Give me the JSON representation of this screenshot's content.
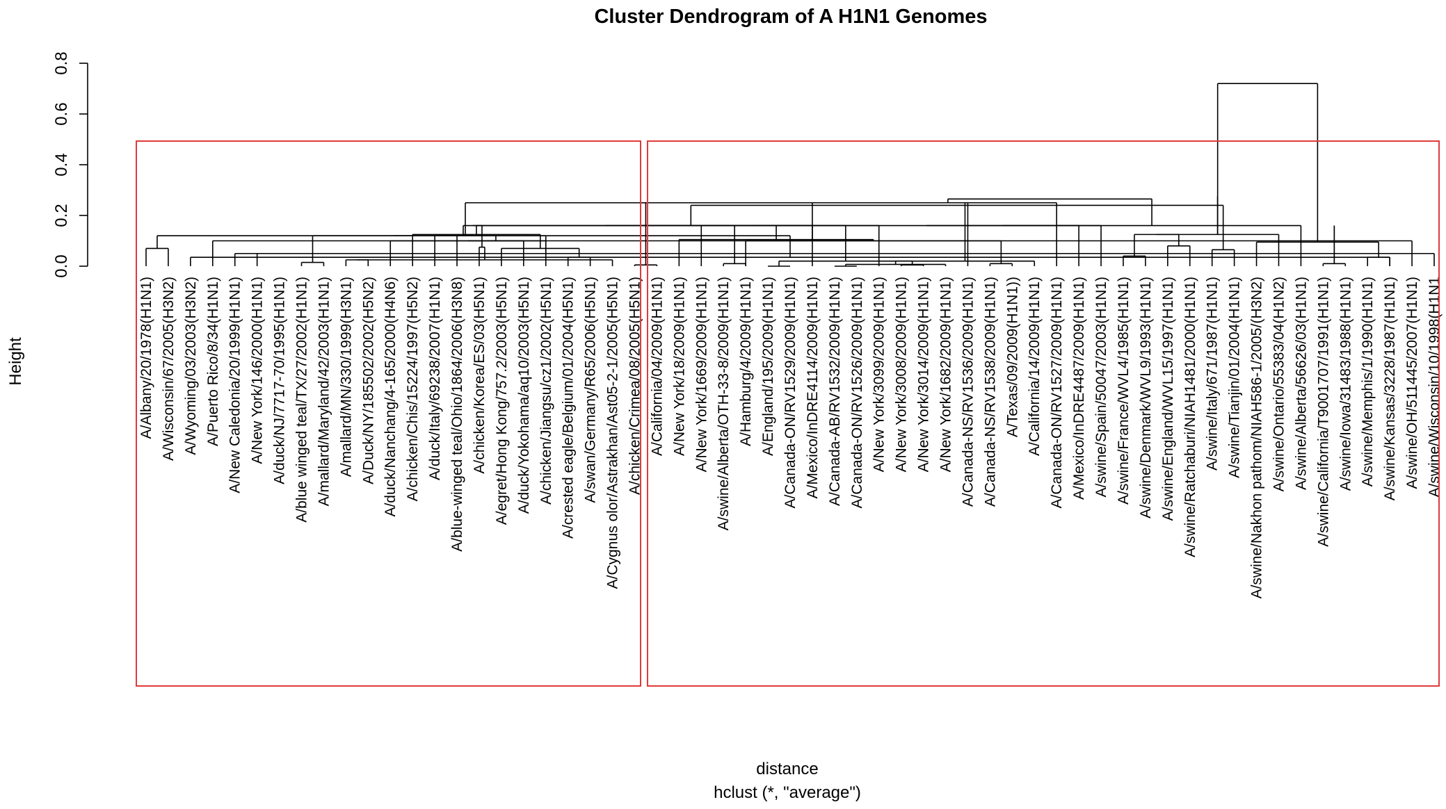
{
  "chart_data": {
    "type": "dendrogram",
    "title": "Cluster Dendrogram of A H1N1 Genomes",
    "ylabel": "Height",
    "xlabel": "distance",
    "subtitle": "hclust (*, \"average\")",
    "ylim": [
      0,
      0.8
    ],
    "yticks": [
      "0.0",
      "0.2",
      "0.4",
      "0.6",
      "0.8"
    ],
    "cluster_box_color": "#e03a3a",
    "leaves": [
      "A/Albany/20/1978(H1N1)",
      "A/Wisconsin/67/2005(H3N2)",
      "A/Wyoming/03/2003(H3N2)",
      "A/Puerto Rico/8/34(H1N1)",
      "A/New Caledonia/20/1999(H1N1)",
      "A/New York/146/2000(H1N1)",
      "A/duck/NJ/7717-70/1995(H1N1)",
      "A/blue winged teal/TX/27/2002(H1N1)",
      "A/mallard/Maryland/42/2003(H1N1)",
      "A/mallard/MN/330/1999(H3N1)",
      "A/Duck/NY/185502/2002(H5N2)",
      "A/duck/Nanchang/4-165/2000(H4N6)",
      "A/chicken/Chis/15224/1997(H5N2)",
      "A/duck/Italy/69238/2007(H1N1)",
      "A/blue-winged teal/Ohio/1864/2006(H3N8)",
      "A/chicken/Korea/ES/03(H5N1)",
      "A/egret/Hong Kong/757.2/2003(H5N1)",
      "A/duck/Yokohama/aq10/2003(H5N1)",
      "A/chicken/Jiangsu/cz1/2002(H5N1)",
      "A/crested eagle/Belgium/01/2004(H5N1)",
      "A/swan/Germany/R65/2006(H5N1)",
      "A/Cygnus olor/Astrakhan/Ast05-2-1/2005(H5N1)",
      "A/chicken/Crimea/08/2005(H5N1)",
      "A/California/04/2009(H1N1)",
      "A/New York/18/2009(H1N1)",
      "A/New York/1669/2009(H1N1)",
      "A/swine/Alberta/OTH-33-8/2009(H1N1)",
      "A/Hamburg/4/2009(H1N1)",
      "A/England/195/2009(H1N1)",
      "A/Canada-ON/RV1529/2009(H1N1)",
      "A/Mexico/InDRE4114/2009(H1N1)",
      "A/Canada-AB/RV1532/2009(H1N1)",
      "A/Canada-ON/RV1526/2009(H1N1)",
      "A/New York/3099/2009(H1N1)",
      "A/New York/3008/2009(H1N1)",
      "A/New York/3014/2009(H1N1)",
      "A/New York/1682/2009(H1N1)",
      "A/Canada-NS/RV1536/2009(H1N1)",
      "A/Canada-NS/RV1538/2009(H1N1)",
      "A/Texas/09/2009(H1N1))",
      "A/California/14/2009(H1N1)",
      "A/Canada-ON/RV1527/2009(H1N1)",
      "A/Mexico/InDRE4487/2009(H1N1)",
      "A/swine/Spain/50047/2003(H1N1)",
      "A/swine/France/WVL4/1985(H1N1)",
      "A/swine/Denmark/WVL9/1993(H1N1)",
      "A/swine/England/WVL15/1997(H1N1)",
      "A/swine/Ratchaburi/NIAH1481/2000(H1N1)",
      "A/swine/Italy/671/1987(H1N1)",
      "A/swine/Tianjin/01/2004(H1N1)",
      "A/swine/Nakhon pathom/NIAH586-1/2005/(H3N2)",
      "A/swine/Ontario/55383/04(H1N2)",
      "A/swine/Alberta/56626/03(H1N1)",
      "A/swine/California/T9001707/1991(H1N1)",
      "A/swine/Iowa/31483/1988(H1N1)",
      "A/swine/Memphis/1/1990(H1N1)",
      "A/swine/Kansas/3228/1987(H1N1)",
      "A/swine/OH/511445/2007(H1N1)",
      "A/swine/Wisconsin/10/1998(H1N1"
    ],
    "merges": [
      [
        0,
        1,
        0.07
      ],
      [
        56,
        2,
        0.035
      ],
      [
        57,
        3,
        0.1
      ],
      [
        58,
        4,
        0.05
      ],
      [
        59,
        60,
        0.12
      ],
      [
        7,
        8,
        0.015
      ],
      [
        5,
        62,
        0.05
      ],
      [
        9,
        10,
        0.025
      ],
      [
        63,
        64,
        0.075
      ],
      [
        11,
        65,
        0.1
      ],
      [
        19,
        20,
        0.035
      ],
      [
        66,
        21,
        0.025
      ],
      [
        67,
        18,
        0.04
      ],
      [
        17,
        68,
        0.05
      ],
      [
        69,
        16,
        0.07
      ],
      [
        70,
        15,
        0.075
      ],
      [
        71,
        14,
        0.095
      ],
      [
        72,
        13,
        0.12
      ],
      [
        12,
        73,
        0.125
      ],
      [
        74,
        75,
        0.16
      ],
      [
        61,
        76,
        0.25
      ],
      [
        22,
        23,
        0.005
      ],
      [
        28,
        29,
        -0.005
      ],
      [
        78,
        30,
        -0.002
      ],
      [
        31,
        32,
        0.0
      ],
      [
        79,
        80,
        0.003
      ],
      [
        34,
        35,
        0.005
      ],
      [
        82,
        33,
        0.007
      ],
      [
        83,
        36,
        0.007
      ],
      [
        84,
        37,
        0.01
      ],
      [
        85,
        81,
        0.02
      ],
      [
        38,
        39,
        0.01
      ],
      [
        87,
        40,
        0.02
      ],
      [
        88,
        41,
        0.03
      ],
      [
        86,
        89,
        0.065
      ],
      [
        90,
        27,
        0.1
      ],
      [
        26,
        27,
        0.01
      ],
      [
        91,
        92,
        0.055
      ],
      [
        25,
        93,
        0.075
      ],
      [
        94,
        24,
        0.105
      ],
      [
        77,
        95,
        0.16
      ],
      [
        44,
        45,
        0.04
      ],
      [
        43,
        97,
        0.06
      ],
      [
        46,
        47,
        0.08
      ],
      [
        98,
        99,
        0.105
      ],
      [
        48,
        49,
        0.065
      ],
      [
        101,
        42,
        0.09
      ],
      [
        100,
        102,
        0.125
      ],
      [
        55,
        56,
        0.035
      ],
      [
        53,
        54,
        0.01
      ],
      [
        104,
        104,
        0.01
      ],
      [
        52,
        105,
        0.05
      ],
      [
        106,
        51,
        0.06
      ],
      [
        107,
        50,
        0.095
      ],
      [
        108,
        108,
        0.16
      ],
      [
        103,
        109,
        0.24
      ],
      [
        96,
        110,
        0.265
      ],
      [
        111,
        111,
        0.275
      ],
      [
        111,
        112,
        0.72
      ]
    ]
  }
}
